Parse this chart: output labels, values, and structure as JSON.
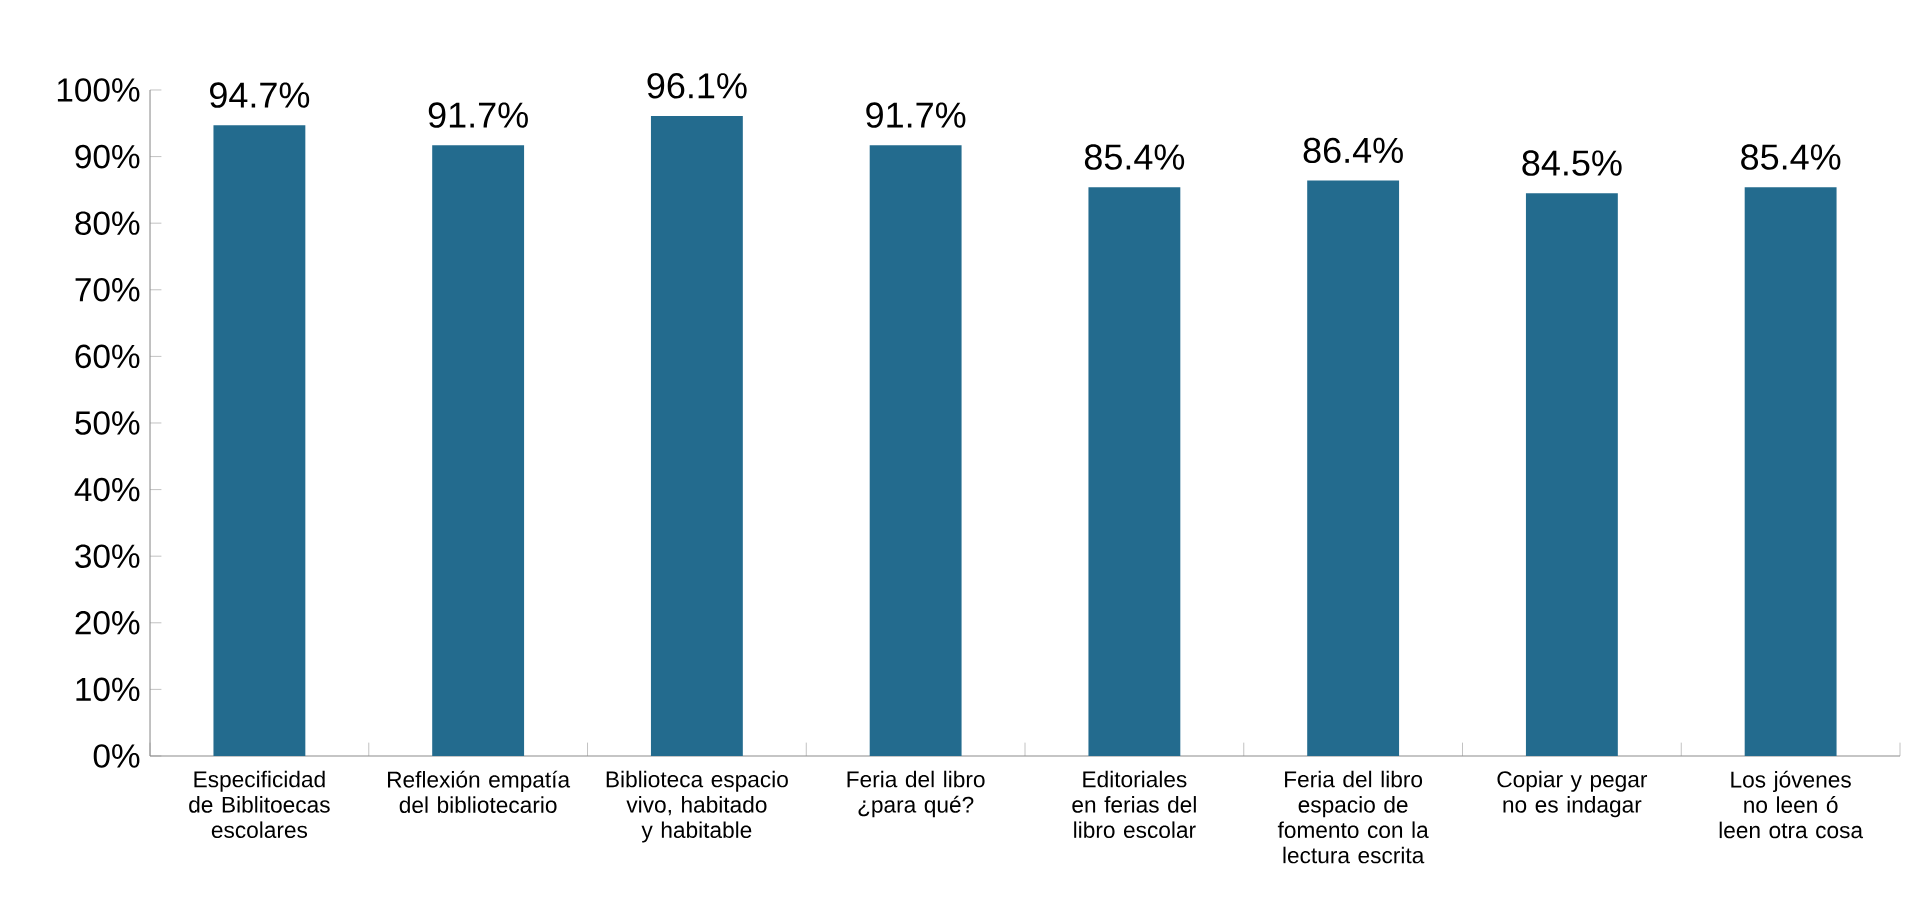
{
  "chart_data": {
    "type": "bar",
    "categories": [
      "Especificidad de Biblitoecas escolares",
      "Reflexión empatía del bibliotecario",
      "Biblioteca espacio vivo, habitado y habitable",
      "Feria del libro ¿para qué?",
      "Editoriales en ferias del libro escolar",
      "Feria del libro espacio de fomento con la lectura escrita",
      "Copiar y pegar no es indagar",
      "Los jóvenes no leen ó leen otra cosa"
    ],
    "values": [
      94.7,
      91.7,
      96.1,
      91.7,
      85.4,
      86.4,
      84.5,
      85.4
    ],
    "value_labels": [
      "94.7%",
      "91.7%",
      "96.1%",
      "91.7%",
      "85.4%",
      "86.4%",
      "84.5%",
      "85.4%"
    ],
    "color": "#236b8e",
    "ylim": [
      0,
      100
    ],
    "yticks": [
      {
        "value": 0,
        "label": "0%"
      },
      {
        "value": 10,
        "label": "10%"
      },
      {
        "value": 20,
        "label": "20%"
      },
      {
        "value": 30,
        "label": "30%"
      },
      {
        "value": 40,
        "label": "40%"
      },
      {
        "value": 50,
        "label": "50%"
      },
      {
        "value": 60,
        "label": "60%"
      },
      {
        "value": 70,
        "label": "70%"
      },
      {
        "value": 80,
        "label": "80%"
      },
      {
        "value": 90,
        "label": "90%"
      },
      {
        "value": 100,
        "label": "100%"
      }
    ],
    "grid": false
  }
}
